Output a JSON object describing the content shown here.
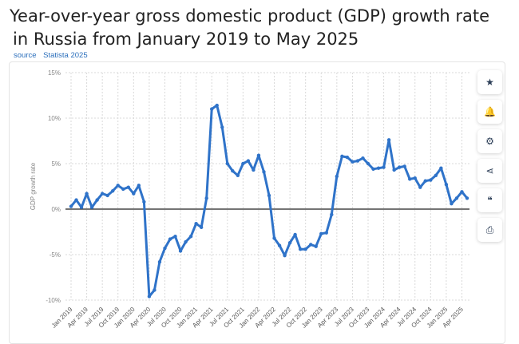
{
  "title_line1": "Year-over-year gross domestic product (GDP) growth rate",
  "title_line2": "in Russia from January 2019 to May 2025",
  "source_label": "source",
  "source_value": "Statista 2025",
  "colors": {
    "line": "#2f73c9",
    "zero_line": "#222222",
    "grid": "#d9d9d9"
  },
  "toolbar": [
    {
      "icon": "star-icon",
      "glyph": "★"
    },
    {
      "icon": "bell-icon",
      "glyph": "🔔"
    },
    {
      "icon": "gear-icon",
      "glyph": "⚙"
    },
    {
      "icon": "share-icon",
      "glyph": "⋖"
    },
    {
      "icon": "quote-icon",
      "glyph": "❝"
    },
    {
      "icon": "print-icon",
      "glyph": "⎙"
    }
  ],
  "chart_data": {
    "type": "line",
    "ylabel": "GDP growth rate",
    "ylim": [
      -10,
      15
    ],
    "yticks": [
      -10,
      -5,
      0,
      5,
      10,
      15
    ],
    "ytick_labels": [
      "-10%",
      "-5%",
      "0%",
      "5%",
      "10%",
      "15%"
    ],
    "xtick_labels": [
      "Jan 2019",
      "Apr 2019",
      "Jul 2019",
      "Oct 2019",
      "Jan 2020",
      "Apr 2020",
      "Jul 2020",
      "Oct 2020",
      "Jan 2021",
      "Apr 2021",
      "Jul 2021",
      "Oct 2021",
      "Jan 2022",
      "Apr 2022",
      "Jul 2022",
      "Oct 2022",
      "Jan 2023",
      "Apr 2023",
      "Jul 2023",
      "Oct 2023",
      "Jan 2024",
      "Apr 2024",
      "Jul 2024",
      "Oct 2024",
      "Jan 2025",
      "Apr 2025"
    ],
    "series": [
      {
        "name": "GDP growth rate",
        "values": [
          0.3,
          1.0,
          0.2,
          1.7,
          0.2,
          1.0,
          1.7,
          1.5,
          2.0,
          2.6,
          2.2,
          2.4,
          1.7,
          2.6,
          0.8,
          -9.6,
          -8.9,
          -5.8,
          -4.3,
          -3.3,
          -3.0,
          -4.6,
          -3.6,
          -3.0,
          -1.6,
          -2.0,
          1.2,
          11.0,
          11.4,
          9.0,
          5.0,
          4.2,
          3.7,
          5.0,
          5.3,
          4.3,
          5.9,
          4.1,
          1.5,
          -3.2,
          -4.0,
          -5.1,
          -3.7,
          -2.8,
          -4.4,
          -4.4,
          -3.9,
          -4.1,
          -2.7,
          -2.6,
          -0.6,
          3.6,
          5.8,
          5.7,
          5.2,
          5.3,
          5.6,
          5.0,
          4.4,
          4.5,
          4.6,
          7.6,
          4.3,
          4.6,
          4.7,
          3.3,
          3.4,
          2.4,
          3.1,
          3.2,
          3.7,
          4.5,
          2.7,
          0.6,
          1.2,
          1.9,
          1.2
        ]
      }
    ]
  }
}
